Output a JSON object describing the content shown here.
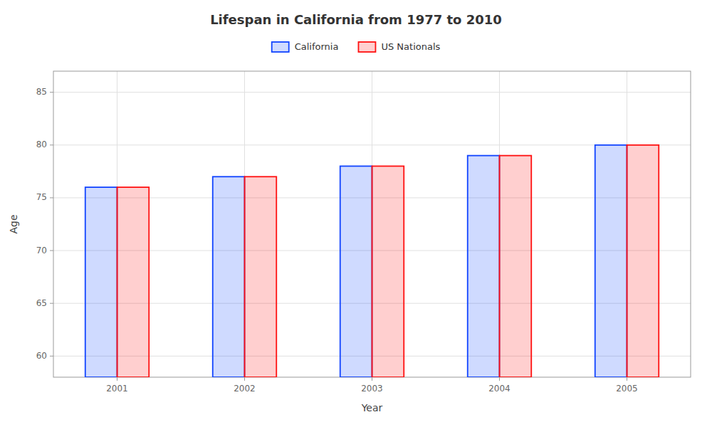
{
  "chart_data": {
    "type": "bar",
    "title": "Lifespan in California from 1977 to 2010",
    "x_label": "Year",
    "y_label": "Age",
    "categories": [
      "2001",
      "2002",
      "2003",
      "2004",
      "2005"
    ],
    "series": [
      {
        "name": "California",
        "color": "#1144ff",
        "values": [
          76,
          77,
          78,
          79,
          80
        ]
      },
      {
        "name": "US Nationals",
        "color": "#ff1111",
        "values": [
          76,
          77,
          78,
          79,
          80
        ]
      }
    ],
    "ylim": [
      58,
      87
    ],
    "yticks": [
      60,
      65,
      70,
      75,
      80,
      85
    ],
    "grid": true,
    "legend": "top"
  }
}
